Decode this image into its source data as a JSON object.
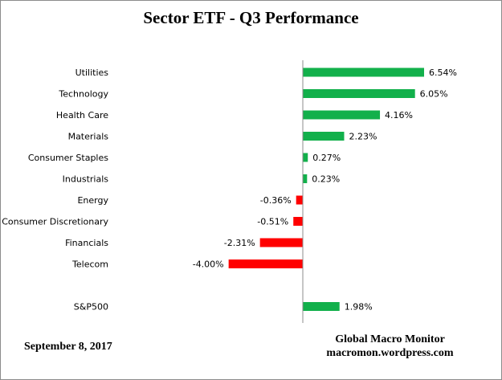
{
  "chart_data": {
    "type": "bar",
    "orientation": "horizontal",
    "title": "Sector ETF - Q3 Performance",
    "categories": [
      "Utilities",
      "Technology",
      "Health Care",
      "Materials",
      "Consumer Staples",
      "Industrials",
      "Energy",
      "Consumer Discretionary",
      "Financials",
      "Telecom",
      "",
      "S&P500"
    ],
    "values": [
      6.54,
      6.05,
      4.16,
      2.23,
      0.27,
      0.23,
      -0.36,
      -0.51,
      -2.31,
      -4.0,
      null,
      1.98
    ],
    "value_labels": [
      "6.54%",
      "6.05%",
      "4.16%",
      "2.23%",
      "0.27%",
      "0.23%",
      "-0.36%",
      "-0.51%",
      "-2.31%",
      "-4.00%",
      "",
      "1.98%"
    ],
    "xlim": [
      -4.0,
      6.54
    ],
    "grid": false,
    "legend": "none",
    "colors": {
      "positive": "#12b04b",
      "negative": "#ff0000",
      "axis": "#8c8c8c"
    }
  },
  "footer": {
    "date": "September 8,  2017",
    "source_name": "Global Macro Monitor",
    "source_url": "macromon.wordpress.com"
  }
}
